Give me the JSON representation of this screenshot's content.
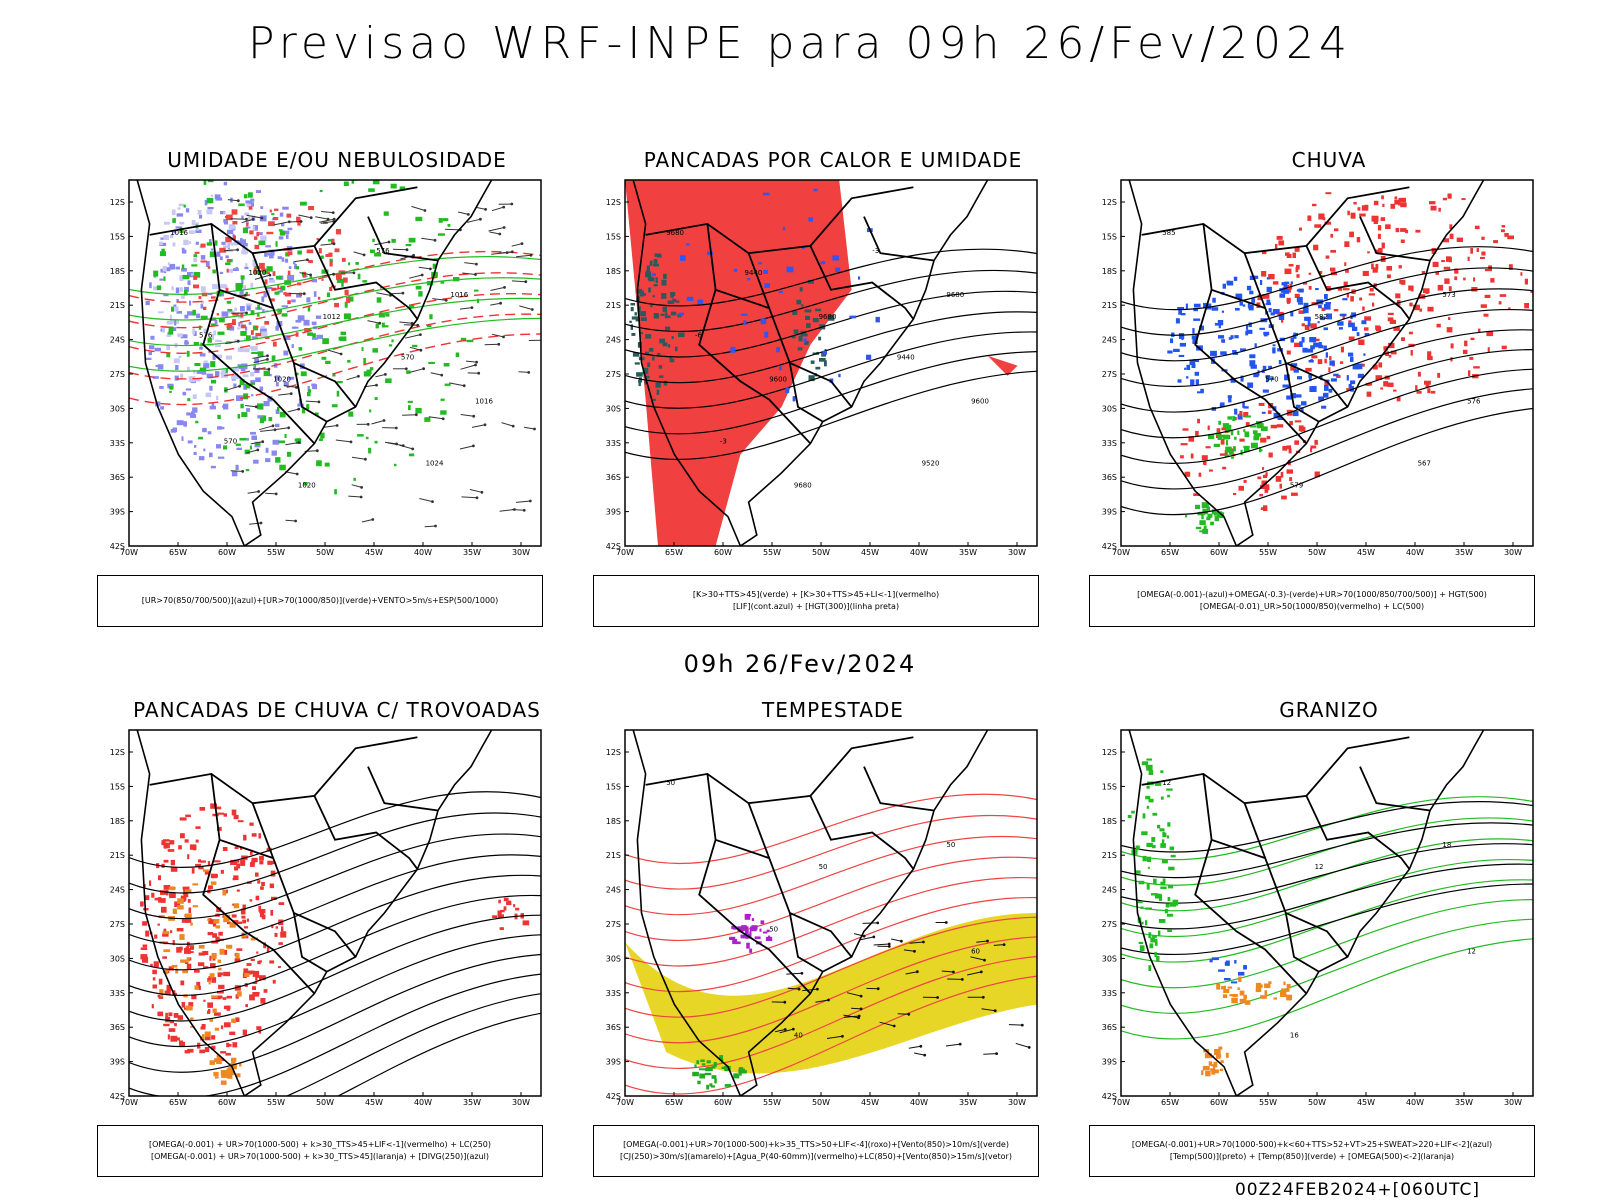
{
  "title": "Previsao WRF-INPE  para 09h 26/Fev/2024",
  "mid_title": "09h 26/Fev/2024",
  "footer": "00Z24FEB2024+[060UTC]",
  "axes": {
    "lat_labels": [
      "12S",
      "15S",
      "18S",
      "21S",
      "24S",
      "27S",
      "30S",
      "33S",
      "36S",
      "39S",
      "42S"
    ],
    "lon_labels": [
      "70W",
      "65W",
      "60W",
      "55W",
      "50W",
      "45W",
      "40W",
      "35W",
      "30W"
    ]
  },
  "panels": [
    {
      "title": "UMIDADE E/OU NEBULOSIDADE",
      "legend": [
        "[UR>70(850/700/500)](azul)+[UR>70(1000/850)](verde)+VENTO>5m/s+ESP(500/1000)"
      ],
      "labels": [
        "1016",
        "1012",
        "1016",
        "1020",
        "1016",
        "1020",
        "1024",
        "1020",
        "570",
        "570",
        "576",
        "576"
      ]
    },
    {
      "title": "PANCADAS POR CALOR E UMIDADE",
      "legend": [
        "[K>30+TTS>45](verde) + [K>30+TTS>45+LI<-1](vermelho)",
        "[LIF](cont.azul) + [HGT(300)](linha preta)"
      ],
      "labels": [
        "9680",
        "9680",
        "9600",
        "9680",
        "9680",
        "9600",
        "9520",
        "9440",
        "9440",
        "-3",
        "-3",
        "-6"
      ]
    },
    {
      "title": "CHUVA",
      "legend": [
        "[OMEGA(-0.001)-(azul)+OMEGA(-0.3)-(verde)+UR>70(1000/850/700/500)] + HGT(500)",
        "[OMEGA(-0.01)_UR>50(1000/850)(vermelho) + LC(500)"
      ],
      "labels": [
        "585",
        "582",
        "576",
        "579",
        "573",
        "570",
        "567"
      ]
    },
    {
      "title": "PANCADAS DE CHUVA C/ TROVOADAS",
      "legend": [
        "[OMEGA(-0.001) + UR>70(1000-500) + k>30_TTS>45+LIF<-1](vermelho) + LC(250)",
        "[OMEGA(-0.001) + UR>70(1000-500) + k>30_TTS>45](laranja) + [DIVG(250)](azul)"
      ],
      "labels": []
    },
    {
      "title": "TEMPESTADE",
      "legend": [
        "[OMEGA(-0.001)+UR>70(1000-500)+k>35_TTS>50+LIF<-4](roxo)+[Vento(850)>10m/s](verde)",
        "[CJ(250)>30m/s](amarelo)+[Agua_P(40-60mm)](vermelho)+LC(850)+[Vento(850)>15m/s](vetor)"
      ],
      "labels": [
        "50",
        "50",
        "60",
        "40",
        "50",
        "50"
      ]
    },
    {
      "title": "GRANIZO",
      "legend": [
        "[OMEGA(-0.001)+UR>70(1000-500)+k<60+TTS>52+VT>25+SWEAT>220+LIF<-2](azul)",
        "[Temp(500)](preto) + [Temp(850)](verde) + [OMEGA(500)<-2](laranja)"
      ],
      "labels": [
        "12",
        "12",
        "12",
        "16",
        "18"
      ]
    }
  ]
}
